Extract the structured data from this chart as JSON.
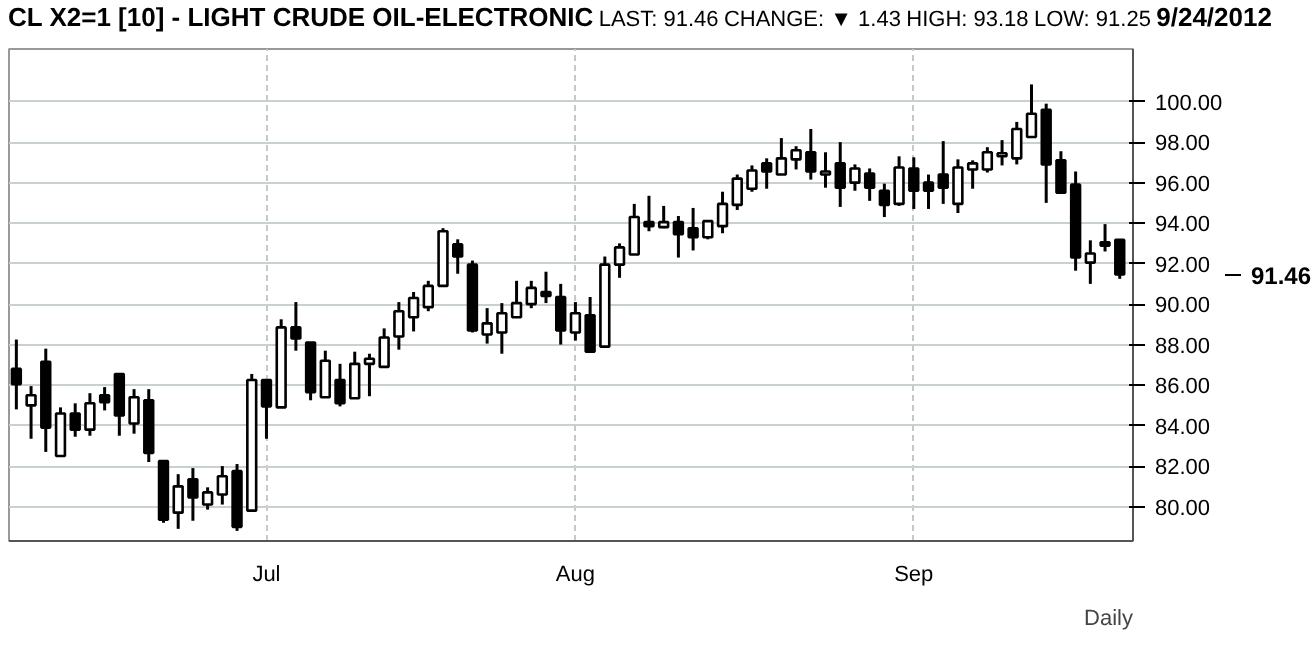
{
  "chart_data": {
    "type": "candlestick",
    "title": "CL X2=1 [10] - LIGHT CRUDE OIL-ELECTRONIC",
    "annotations": [
      "LAST: 91.46",
      "CHANGE: ▼ 1.43",
      "HIGH: 93.18",
      "LOW: 91.25",
      "9/24/2012",
      "91.46",
      "Daily"
    ],
    "categories": [
      null,
      null,
      null,
      null,
      null,
      null,
      null,
      null,
      null,
      null,
      null,
      null,
      null,
      null,
      null,
      null,
      null,
      "Jul",
      null,
      null,
      null,
      null,
      null,
      null,
      null,
      null,
      null,
      null,
      null,
      null,
      null,
      null,
      null,
      null,
      null,
      null,
      null,
      null,
      "Aug",
      null,
      null,
      null,
      null,
      null,
      null,
      null,
      null,
      null,
      null,
      null,
      null,
      null,
      null,
      null,
      null,
      null,
      null,
      null,
      null,
      null,
      null,
      "Sep",
      null,
      null,
      null,
      null,
      null,
      null,
      null,
      null,
      null,
      null,
      null,
      null,
      null,
      null
    ],
    "ohlc": [
      [
        86.8,
        88.25,
        84.8,
        86.05
      ],
      [
        85.0,
        85.95,
        83.35,
        85.5
      ],
      [
        87.15,
        87.8,
        82.7,
        83.9
      ],
      [
        82.5,
        84.9,
        82.5,
        84.6
      ],
      [
        84.6,
        85.1,
        83.45,
        83.8
      ],
      [
        83.8,
        85.6,
        83.5,
        85.1
      ],
      [
        85.5,
        85.9,
        84.75,
        85.15
      ],
      [
        86.55,
        86.55,
        83.5,
        84.5
      ],
      [
        84.1,
        85.8,
        83.6,
        85.4
      ],
      [
        85.25,
        85.8,
        82.2,
        82.65
      ],
      [
        82.25,
        82.3,
        79.2,
        79.35
      ],
      [
        79.7,
        81.6,
        78.9,
        81.0
      ],
      [
        81.35,
        81.9,
        79.3,
        80.45
      ],
      [
        80.1,
        80.95,
        79.85,
        80.7
      ],
      [
        80.6,
        82.0,
        80.1,
        81.5
      ],
      [
        81.75,
        82.1,
        78.8,
        79.0
      ],
      [
        79.8,
        86.55,
        79.8,
        86.25
      ],
      [
        86.25,
        86.25,
        83.35,
        84.95
      ],
      [
        84.9,
        89.25,
        84.9,
        88.85
      ],
      [
        88.85,
        90.1,
        87.7,
        88.3
      ],
      [
        88.1,
        88.1,
        85.25,
        85.65
      ],
      [
        85.4,
        87.7,
        85.4,
        87.2
      ],
      [
        86.25,
        87.05,
        84.95,
        85.1
      ],
      [
        85.35,
        87.65,
        85.35,
        87.05
      ],
      [
        87.05,
        87.55,
        85.45,
        87.3
      ],
      [
        86.9,
        88.8,
        86.9,
        88.35
      ],
      [
        88.4,
        90.1,
        87.75,
        89.65
      ],
      [
        89.35,
        90.6,
        88.65,
        90.3
      ],
      [
        89.85,
        91.15,
        89.65,
        90.9
      ],
      [
        90.9,
        93.75,
        90.9,
        93.6
      ],
      [
        92.95,
        93.2,
        91.5,
        92.35
      ],
      [
        91.95,
        92.15,
        88.6,
        88.7
      ],
      [
        88.5,
        89.8,
        88.05,
        89.05
      ],
      [
        88.6,
        90.05,
        87.55,
        89.55
      ],
      [
        89.35,
        91.15,
        89.35,
        90.05
      ],
      [
        90.0,
        91.15,
        89.8,
        90.8
      ],
      [
        90.6,
        91.6,
        90.05,
        90.4
      ],
      [
        90.35,
        91.0,
        88.0,
        88.7
      ],
      [
        88.6,
        90.1,
        88.2,
        89.55
      ],
      [
        89.45,
        90.35,
        87.6,
        87.65
      ],
      [
        87.9,
        92.35,
        87.9,
        91.95
      ],
      [
        91.95,
        93.0,
        91.3,
        92.8
      ],
      [
        92.45,
        94.95,
        92.45,
        94.3
      ],
      [
        94.05,
        95.35,
        93.6,
        93.85
      ],
      [
        93.8,
        94.85,
        93.75,
        94.05
      ],
      [
        94.05,
        94.35,
        92.3,
        93.45
      ],
      [
        93.75,
        94.75,
        92.65,
        93.3
      ],
      [
        93.3,
        94.1,
        93.2,
        94.1
      ],
      [
        93.85,
        95.55,
        93.5,
        94.95
      ],
      [
        94.9,
        96.4,
        94.65,
        96.2
      ],
      [
        95.7,
        96.85,
        95.55,
        96.6
      ],
      [
        96.95,
        97.2,
        95.7,
        96.55
      ],
      [
        96.4,
        98.2,
        96.4,
        97.2
      ],
      [
        97.15,
        97.8,
        96.65,
        97.6
      ],
      [
        97.5,
        98.65,
        96.15,
        96.55
      ],
      [
        96.4,
        97.5,
        95.75,
        96.55
      ],
      [
        96.95,
        98.0,
        94.8,
        95.75
      ],
      [
        96.0,
        96.9,
        95.6,
        96.7
      ],
      [
        96.45,
        96.7,
        95.1,
        95.75
      ],
      [
        95.6,
        95.95,
        94.3,
        94.9
      ],
      [
        94.95,
        97.3,
        94.85,
        96.75
      ],
      [
        96.7,
        97.25,
        94.7,
        95.6
      ],
      [
        96.0,
        96.4,
        94.7,
        95.6
      ],
      [
        96.4,
        98.05,
        94.95,
        95.75
      ],
      [
        94.95,
        97.15,
        94.5,
        96.75
      ],
      [
        96.65,
        97.1,
        95.7,
        96.95
      ],
      [
        96.65,
        97.75,
        96.5,
        97.5
      ],
      [
        97.3,
        98.1,
        96.85,
        97.45
      ],
      [
        97.2,
        99.0,
        96.9,
        98.65
      ],
      [
        98.25,
        100.85,
        98.25,
        99.4
      ],
      [
        99.6,
        99.9,
        95.0,
        96.9
      ],
      [
        97.1,
        97.55,
        95.5,
        95.5
      ],
      [
        95.9,
        96.55,
        91.65,
        92.3
      ],
      [
        92.05,
        93.15,
        91.0,
        92.5
      ],
      [
        93.05,
        93.95,
        92.6,
        92.89
      ],
      [
        93.18,
        93.18,
        91.25,
        91.46
      ]
    ],
    "color": "#000000",
    "ylim": [
      78.3,
      102.6
    ],
    "yticks": [
      {
        "value": 80,
        "label": "80.00"
      },
      {
        "value": 82,
        "label": "82.00"
      },
      {
        "value": 84,
        "label": "84.00"
      },
      {
        "value": 86,
        "label": "86.00"
      },
      {
        "value": 88,
        "label": "88.00"
      },
      {
        "value": 90,
        "label": "90.00"
      },
      {
        "value": 92,
        "label": "92.00"
      },
      {
        "value": 94,
        "label": "94.00"
      },
      {
        "value": 96,
        "label": "96.00"
      },
      {
        "value": 98,
        "label": "98.00"
      },
      {
        "value": 100,
        "label": "100.00"
      }
    ],
    "grid": true
  }
}
